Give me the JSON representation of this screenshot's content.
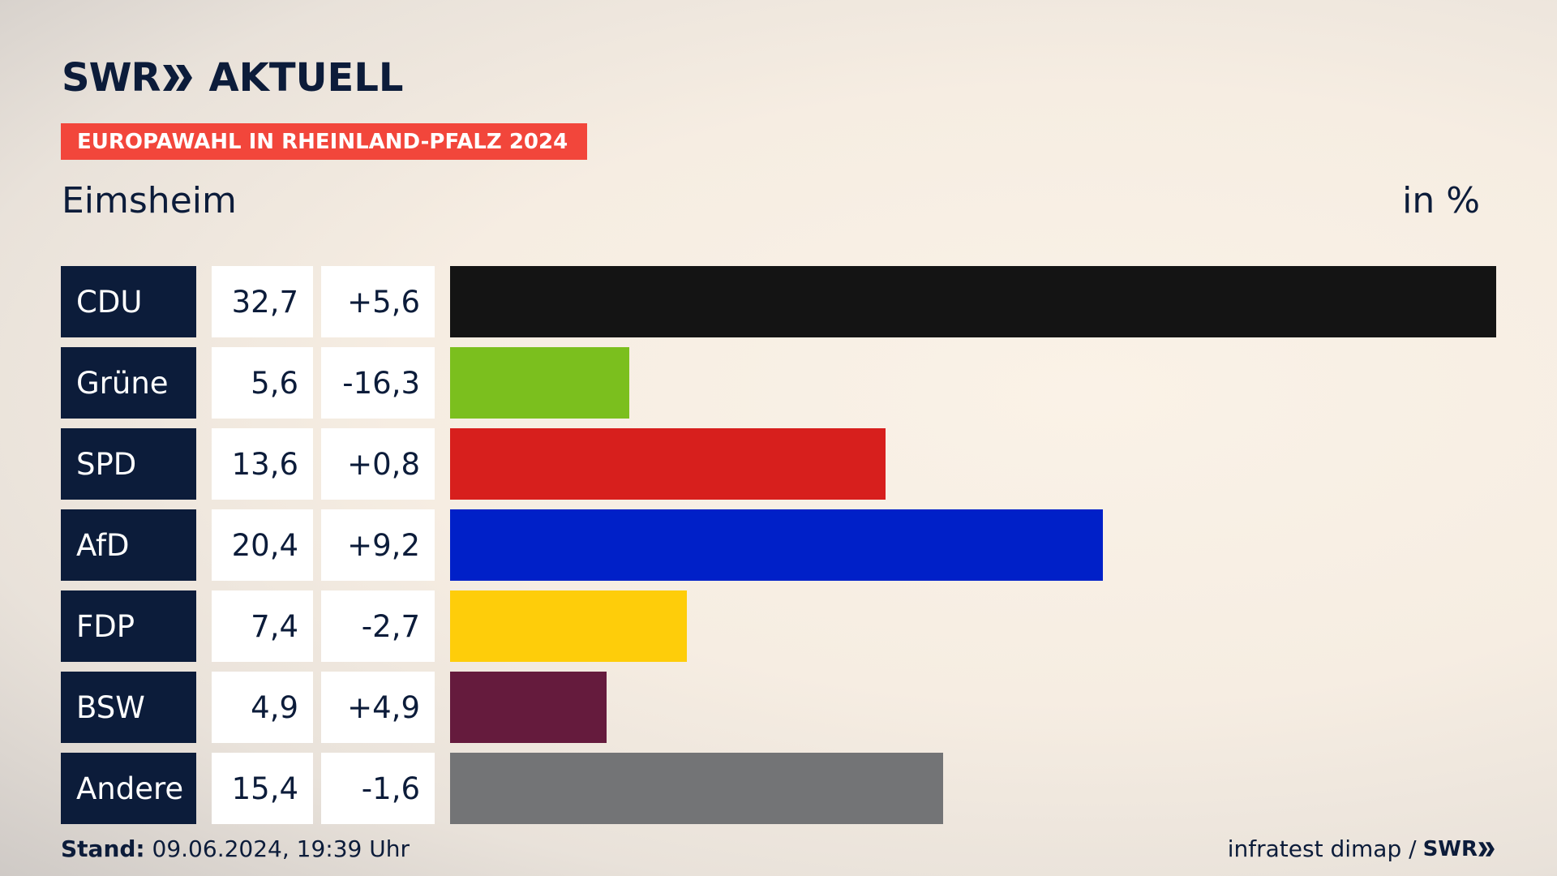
{
  "header": {
    "logo_swr": "SWR",
    "logo_aktuell": "AKTUELL",
    "banner": "EUROPAWAHL IN RHEINLAND-PFALZ 2024",
    "location": "Eimsheim",
    "unit": "in %"
  },
  "footer": {
    "stand_label": "Stand:",
    "stand_value": "09.06.2024, 19:39 Uhr",
    "source": "infratest dimap /",
    "source_logo": "SWR"
  },
  "colors": {
    "navy": "#0c1c3a",
    "banner": "#f2463b"
  },
  "chart_data": {
    "type": "bar",
    "title": "Eimsheim",
    "ylabel": "in %",
    "categories": [
      "CDU",
      "Grüne",
      "SPD",
      "AfD",
      "FDP",
      "BSW",
      "Andere"
    ],
    "values": [
      32.7,
      5.6,
      13.6,
      20.4,
      7.4,
      4.9,
      15.4
    ],
    "value_labels": [
      "32,7",
      "5,6",
      "13,6",
      "20,4",
      "7,4",
      "4,9",
      "15,4"
    ],
    "diff_labels": [
      "+5,6",
      "-16,3",
      "+0,8",
      "+9,2",
      "-2,7",
      "+4,9",
      "-1,6"
    ],
    "bar_colors": [
      "#141414",
      "#7bbf1e",
      "#d71f1d",
      "#0020c8",
      "#fecd0a",
      "#651b3d",
      "#737476"
    ],
    "xlim": [
      0,
      32.7
    ]
  }
}
